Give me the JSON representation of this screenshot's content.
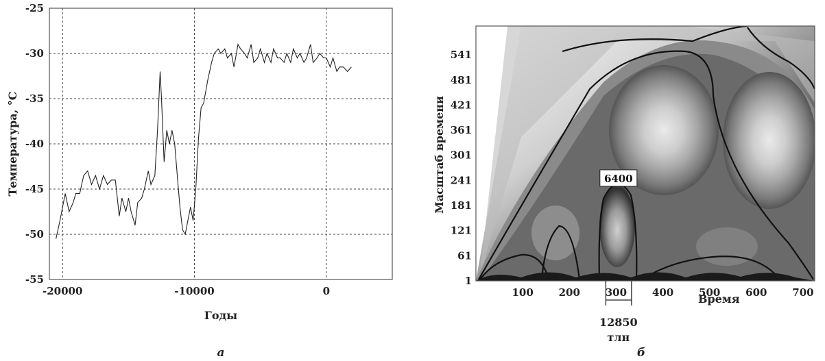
{
  "chart_data": [
    {
      "type": "line",
      "panel_label": "a",
      "xlabel": "Годы",
      "ylabel": "Температура, °C",
      "xlim": [
        -21000,
        5000
      ],
      "ylim": [
        -55,
        -25
      ],
      "x_ticks": [
        -20000,
        -10000,
        0
      ],
      "y_ticks": [
        -25,
        -30,
        -35,
        -40,
        -45,
        -50,
        -55
      ],
      "x_tick_labels": [
        "-20000",
        "-10000",
        "0"
      ],
      "y_tick_labels": [
        "-25",
        "-30",
        "-35",
        "-40",
        "-45",
        "-50",
        "-55"
      ],
      "grid": true,
      "series": [
        {
          "x": [
            -20500,
            -20200,
            -19800,
            -19500,
            -19200,
            -19000,
            -18700,
            -18400,
            -18100,
            -17800,
            -17500,
            -17200,
            -16900,
            -16600,
            -16300,
            -16000,
            -15700,
            -15500,
            -15200,
            -15000,
            -14800,
            -14500,
            -14300,
            -14000,
            -13800,
            -13500,
            -13300,
            -13000,
            -12800,
            -12600,
            -12500,
            -12300,
            -12100,
            -11900,
            -11700,
            -11500,
            -11300,
            -11100,
            -10900,
            -10700,
            -10500,
            -10300,
            -10100,
            -9900,
            -9700,
            -9500,
            -9300,
            -9000,
            -8700,
            -8500,
            -8200,
            -8000,
            -7700,
            -7500,
            -7200,
            -7000,
            -6700,
            -6500,
            -6200,
            -6000,
            -5700,
            -5500,
            -5200,
            -5000,
            -4700,
            -4500,
            -4200,
            -4000,
            -3700,
            -3500,
            -3200,
            -3000,
            -2700,
            -2500,
            -2200,
            -2000,
            -1700,
            -1500,
            -1200,
            -1000,
            -700,
            -500,
            -200,
            0,
            300,
            500,
            800,
            1000,
            1300,
            1600,
            1900
          ],
          "y": [
            -50.5,
            -48.5,
            -45.5,
            -47.5,
            -46.5,
            -45.5,
            -45.5,
            -43.5,
            -43.0,
            -44.5,
            -43.5,
            -45.0,
            -43.5,
            -44.5,
            -44.0,
            -44.0,
            -48.0,
            -46.0,
            -47.5,
            -46.0,
            -47.5,
            -49.0,
            -46.5,
            -46.0,
            -45.0,
            -43.0,
            -44.5,
            -43.5,
            -38.5,
            -32.0,
            -35.0,
            -42.0,
            -38.5,
            -40.0,
            -38.5,
            -40.0,
            -43.5,
            -47.0,
            -49.5,
            -50.0,
            -48.5,
            -47.0,
            -48.5,
            -45.0,
            -39.5,
            -36.0,
            -35.5,
            -33.0,
            -31.0,
            -30.0,
            -29.5,
            -30.0,
            -29.5,
            -30.5,
            -30.0,
            -31.5,
            -29.0,
            -29.5,
            -30.0,
            -30.5,
            -29.0,
            -31.0,
            -30.5,
            -29.5,
            -31.0,
            -30.0,
            -31.0,
            -29.5,
            -30.5,
            -30.5,
            -31.0,
            -30.0,
            -31.0,
            -29.5,
            -30.5,
            -30.0,
            -31.0,
            -30.5,
            -29.0,
            -31.0,
            -30.5,
            -30.0,
            -30.5,
            -30.5,
            -31.5,
            -30.5,
            -32.0,
            -31.5,
            -31.5,
            -32.0,
            -31.5
          ]
        }
      ]
    },
    {
      "type": "heatmap",
      "panel_label": "б",
      "xlabel": "Время",
      "ylabel": "Масштаб времени",
      "xlim": [
        0,
        725
      ],
      "ylim": [
        1,
        610
      ],
      "x_ticks": [
        100,
        200,
        300,
        400,
        500,
        600,
        700
      ],
      "y_ticks": [
        1,
        61,
        121,
        181,
        241,
        301,
        361,
        421,
        481,
        541
      ],
      "x_tick_labels": [
        "100",
        "200",
        "300",
        "400",
        "500",
        "600",
        "700"
      ],
      "y_tick_labels": [
        "1",
        "61",
        "121",
        "181",
        "241",
        "301",
        "361",
        "421",
        "481",
        "541"
      ],
      "annotations": [
        {
          "text": "6400",
          "x": 305,
          "y": 245
        },
        {
          "text": "12850",
          "x": 305,
          "y": -55
        },
        {
          "text": "тлн",
          "x": 305,
          "y": -75
        }
      ],
      "bracket_x_range": [
        278,
        333
      ]
    }
  ]
}
